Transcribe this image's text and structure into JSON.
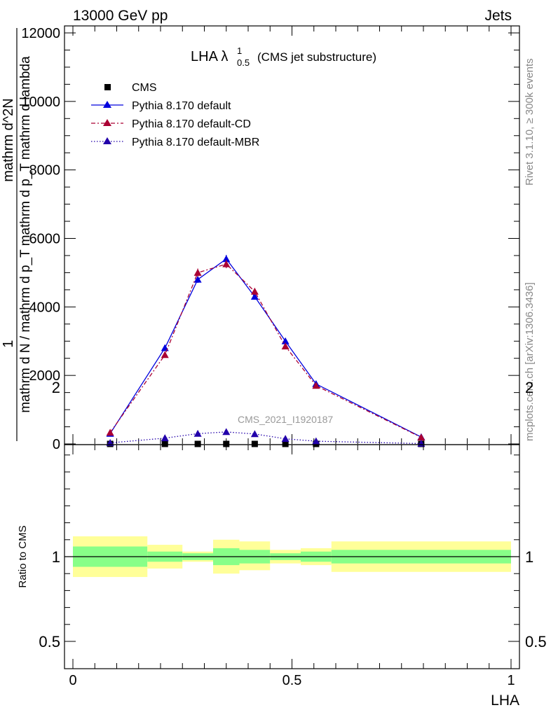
{
  "header": {
    "left": "13000 GeV pp",
    "right": "Jets"
  },
  "side_labels": {
    "rivet": "Rivet 3.1.10, ≥ 300k events",
    "mcplots": "mcplots.cern.ch [arXiv:1306.3436]"
  },
  "colors": {
    "cms": "#000000",
    "pythia_default": "#0000dd",
    "pythia_cd": "#aa0033",
    "pythia_mbr": "#2200aa",
    "band_inner": "#88ff88",
    "band_outer": "#ffff99"
  },
  "chart_data": [
    {
      "type": "line",
      "title_main": "LHA λ",
      "title_sup": "1",
      "title_sub": "0.5",
      "title_suffix": "(CMS jet substructure)",
      "watermark": "CMS_2021_I1920187",
      "ylabel_numerator_lead": "1",
      "ylabel_numerator": "mathrm d^2N",
      "ylabel_denominator": "mathrm d N / mathrm d p_T mathrm d p_T mathrm d lambda",
      "ylim": [
        0,
        12000
      ],
      "xlim": [
        0,
        1
      ],
      "y_ticks": [
        {
          "v": 0,
          "label": "0"
        },
        {
          "v": 2000,
          "label": "2000"
        },
        {
          "v": 4000,
          "label": "4000"
        },
        {
          "v": 6000,
          "label": "6000"
        },
        {
          "v": 8000,
          "label": "8000"
        },
        {
          "v": 10000,
          "label": "10000"
        },
        {
          "v": 12000,
          "label": "12000"
        }
      ],
      "legend": [
        {
          "label": "CMS"
        },
        {
          "label": "Pythia 8.170 default"
        },
        {
          "label": "Pythia 8.170 default-CD"
        },
        {
          "label": "Pythia 8.170 default-MBR"
        }
      ],
      "series": [
        {
          "name": "CMS",
          "x": [
            0.085,
            0.21,
            0.285,
            0.35,
            0.415,
            0.485,
            0.555,
            0.795
          ],
          "y": [
            0,
            0,
            0,
            0,
            0,
            0,
            0,
            0
          ]
        },
        {
          "name": "Pythia 8.170 default",
          "x": [
            0.085,
            0.21,
            0.285,
            0.35,
            0.415,
            0.485,
            0.555,
            0.795
          ],
          "y": [
            300,
            2800,
            4800,
            5400,
            4300,
            3000,
            1750,
            200
          ],
          "err": [
            30,
            80,
            100,
            120,
            90,
            70,
            50,
            20
          ]
        },
        {
          "name": "Pythia 8.170 default-CD",
          "x": [
            0.085,
            0.21,
            0.285,
            0.35,
            0.415,
            0.485,
            0.555,
            0.795
          ],
          "y": [
            330,
            2600,
            5000,
            5250,
            4450,
            2850,
            1700,
            190
          ],
          "err": [
            30,
            80,
            120,
            120,
            100,
            70,
            50,
            20
          ]
        },
        {
          "name": "Pythia 8.170 default-MBR",
          "x": [
            0.085,
            0.21,
            0.285,
            0.35,
            0.415,
            0.485,
            0.555,
            0.795
          ],
          "y": [
            30,
            170,
            300,
            350,
            290,
            150,
            80,
            10
          ]
        }
      ]
    },
    {
      "type": "area",
      "ylabel": "Ratio to CMS",
      "xlabel": "LHA",
      "ylim": [
        0.4,
        2.3
      ],
      "xlim": [
        0,
        1
      ],
      "y_ticks": [
        {
          "v": 0.5,
          "label": "0.5"
        },
        {
          "v": 1,
          "label": "1"
        },
        {
          "v": 2,
          "label": "2"
        }
      ],
      "x_ticks": [
        {
          "v": 0,
          "label": "0"
        },
        {
          "v": 0.5,
          "label": "0.5"
        },
        {
          "v": 1,
          "label": "1"
        }
      ],
      "bins": [
        {
          "lo": 0.0,
          "hi": 0.17,
          "inner": [
            0.94,
            1.06
          ],
          "outer": [
            0.88,
            1.12
          ]
        },
        {
          "lo": 0.17,
          "hi": 0.25,
          "inner": [
            0.97,
            1.03
          ],
          "outer": [
            0.93,
            1.07
          ]
        },
        {
          "lo": 0.25,
          "hi": 0.32,
          "inner": [
            0.98,
            1.02
          ],
          "outer": [
            0.97,
            1.03
          ]
        },
        {
          "lo": 0.32,
          "hi": 0.38,
          "inner": [
            0.95,
            1.05
          ],
          "outer": [
            0.9,
            1.1
          ]
        },
        {
          "lo": 0.38,
          "hi": 0.45,
          "inner": [
            0.96,
            1.04
          ],
          "outer": [
            0.92,
            1.09
          ]
        },
        {
          "lo": 0.45,
          "hi": 0.52,
          "inner": [
            0.98,
            1.02
          ],
          "outer": [
            0.96,
            1.04
          ]
        },
        {
          "lo": 0.52,
          "hi": 0.59,
          "inner": [
            0.97,
            1.03
          ],
          "outer": [
            0.95,
            1.05
          ]
        },
        {
          "lo": 0.59,
          "hi": 1.0,
          "inner": [
            0.96,
            1.04
          ],
          "outer": [
            0.91,
            1.09
          ]
        }
      ]
    }
  ]
}
